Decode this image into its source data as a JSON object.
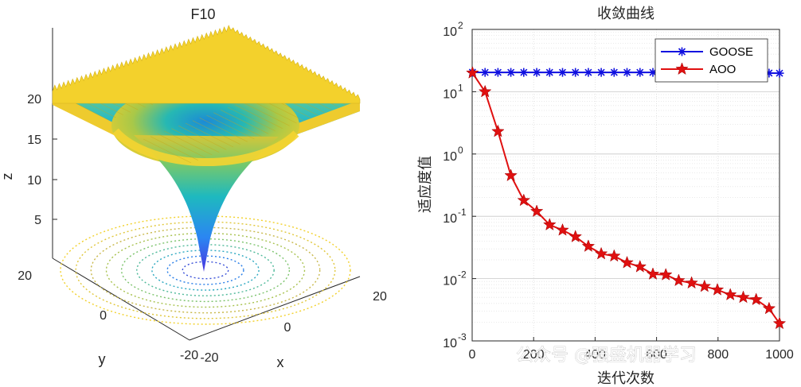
{
  "left_plot": {
    "title": "F10",
    "xlabel": "x",
    "ylabel": "y",
    "zlabel": "z",
    "z_ticks": [
      "5",
      "10",
      "15",
      "20"
    ],
    "x_ticks": [
      "-20",
      "0",
      "20"
    ],
    "y_ticks": [
      "20",
      "0",
      "-20"
    ]
  },
  "watermark": "公众号 @强盛机器学习",
  "colors": {
    "goose": "#1010e0",
    "aoo": "#e01010",
    "grid": "#d9d9d9"
  },
  "chart_data": [
    {
      "type": "surface",
      "title": "F10",
      "xlabel": "x",
      "ylabel": "y",
      "zlabel": "z",
      "xlim": [
        -32,
        32
      ],
      "ylim": [
        -32,
        32
      ],
      "zlim": [
        0,
        22
      ],
      "z_ticks": [
        5,
        10,
        15,
        20
      ],
      "x_ticks": [
        -20,
        0,
        20
      ],
      "y_ticks": [
        -20,
        0,
        20
      ]
    },
    {
      "type": "line",
      "title": "收敛曲线",
      "xlabel": "迭代次数",
      "ylabel": "适应度值",
      "yscale": "log",
      "xlim": [
        0,
        1000
      ],
      "ylim": [
        0.001,
        100
      ],
      "x_ticks": [
        "0",
        "200",
        "400",
        "600",
        "800",
        "1000"
      ],
      "y_ticks": [
        {
          "base": "10",
          "exp": "2"
        },
        {
          "base": "10",
          "exp": "1"
        },
        {
          "base": "10",
          "exp": "0"
        },
        {
          "base": "10",
          "exp": "-1"
        },
        {
          "base": "10",
          "exp": "-2"
        },
        {
          "base": "10",
          "exp": "-3"
        }
      ],
      "legend_position": "top-right",
      "series": [
        {
          "name": "GOOSE",
          "marker": "asterisk",
          "x": [
            1,
            42,
            84,
            126,
            168,
            210,
            252,
            294,
            336,
            378,
            420,
            462,
            504,
            546,
            588,
            630,
            672,
            714,
            756,
            798,
            840,
            882,
            924,
            966,
            1000
          ],
          "y": [
            20.5,
            20.4,
            20.4,
            20.4,
            20.4,
            20.4,
            20.4,
            20.4,
            20.4,
            20.4,
            20.4,
            20.4,
            20.4,
            20.4,
            20.4,
            20.3,
            20.3,
            20.2,
            20.2,
            20.1,
            20.1,
            20.0,
            20.0,
            19.9,
            19.8
          ]
        },
        {
          "name": "AOO",
          "marker": "pentagram",
          "x": [
            1,
            42,
            84,
            126,
            168,
            210,
            252,
            294,
            336,
            378,
            420,
            462,
            504,
            546,
            588,
            630,
            672,
            714,
            756,
            798,
            840,
            882,
            924,
            966,
            1000
          ],
          "y": [
            20.0,
            10.0,
            2.3,
            0.45,
            0.18,
            0.12,
            0.073,
            0.06,
            0.047,
            0.033,
            0.025,
            0.023,
            0.018,
            0.0155,
            0.0118,
            0.0115,
            0.0093,
            0.0085,
            0.0075,
            0.0066,
            0.0055,
            0.005,
            0.0046,
            0.0033,
            0.0019
          ]
        }
      ]
    }
  ]
}
